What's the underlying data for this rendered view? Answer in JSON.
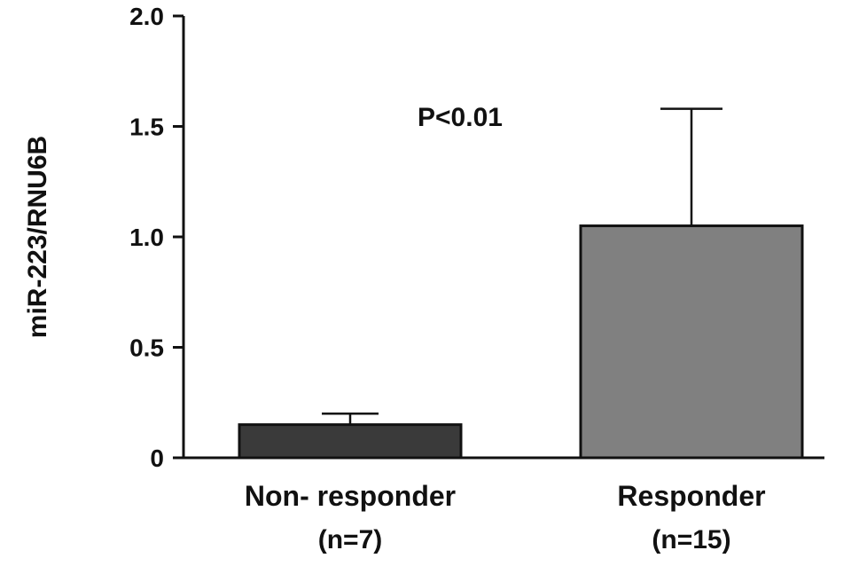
{
  "chart_data": {
    "type": "bar",
    "categories": [
      "Non- responder",
      "Responder"
    ],
    "category_sublabels": [
      "(n=7)",
      "(n=15)"
    ],
    "values": [
      0.15,
      1.05
    ],
    "error_upper": [
      0.05,
      0.53
    ],
    "title": "",
    "xlabel": "",
    "ylabel": "miR-223/RNU6B",
    "ylim": [
      0,
      2.0
    ],
    "yticks": [
      0,
      0.5,
      1.0,
      1.5,
      2.0
    ],
    "ytick_labels": [
      "0",
      "0.5",
      "1.0",
      "1.5",
      "2.0"
    ],
    "annotation": "P<0.01",
    "grid": false,
    "bar_colors": [
      "#3a3a3a",
      "#808080"
    ]
  }
}
